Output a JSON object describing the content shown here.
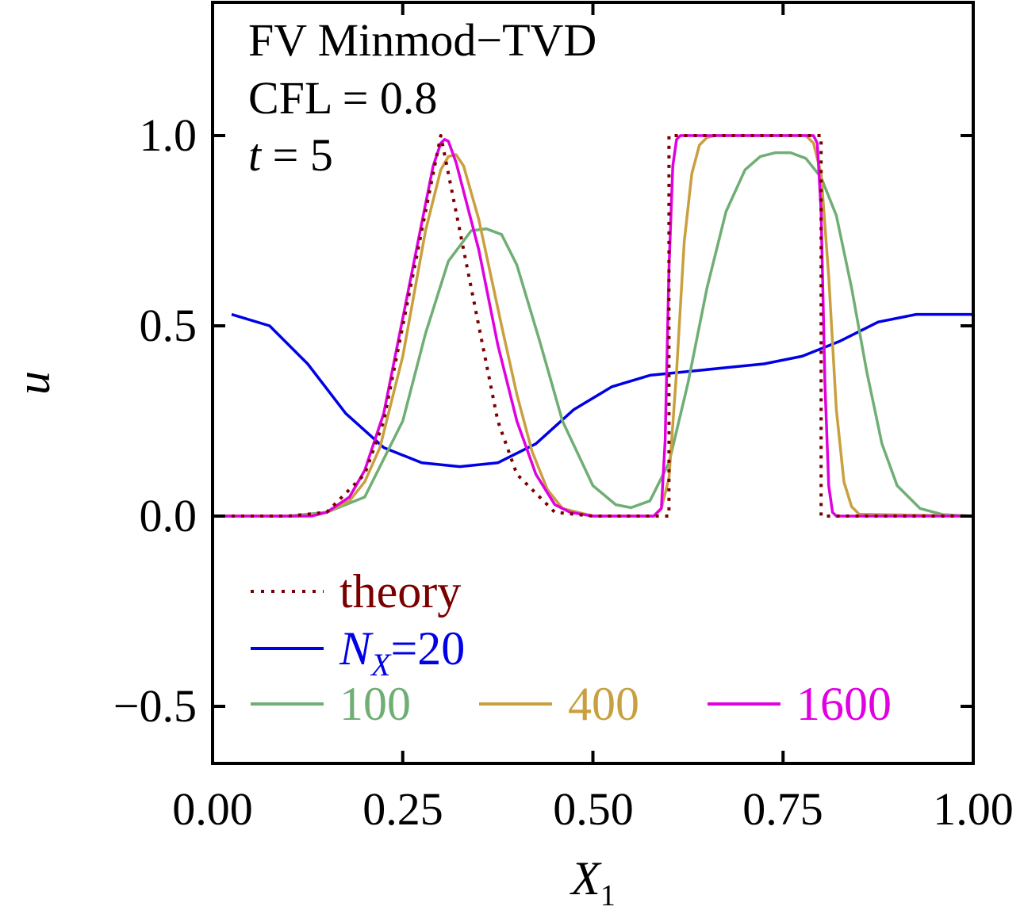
{
  "chart_data": {
    "type": "line",
    "annotations": {
      "line1": "FV Minmod−TVD",
      "line2": "CFL = 0.8",
      "line3_var": "t",
      "line3_rest": " = 5"
    },
    "xlabel": {
      "main": "X",
      "sub": "1"
    },
    "ylabel": "u",
    "xlim": [
      0,
      1
    ],
    "ylim": [
      -0.65,
      1.35
    ],
    "xticks": [
      0,
      0.25,
      0.5,
      0.75,
      1.0
    ],
    "xtick_labels": [
      "0.00",
      "0.25",
      "0.50",
      "0.75",
      "1.00"
    ],
    "yticks": [
      -0.5,
      0,
      0.5,
      1.0
    ],
    "ytick_labels": [
      "−0.5",
      "0.0",
      "0.5",
      "1.0"
    ],
    "grid": false,
    "legend_position": "lower-left",
    "legend": {
      "theory": "theory",
      "nx_var": "N",
      "nx_sub": "X",
      "nx_eq": "=20",
      "n100": "100",
      "n400": "400",
      "n1600": "1600"
    },
    "series": [
      {
        "key": "theory",
        "color": "#7a0000",
        "dashed": true,
        "x": [
          0.0,
          0.1,
          0.15,
          0.2,
          0.225,
          0.25,
          0.275,
          0.3,
          0.325,
          0.35,
          0.375,
          0.4,
          0.45,
          0.5,
          0.6,
          0.6,
          0.8,
          0.8,
          1.0
        ],
        "y": [
          0.0,
          0.0,
          0.01,
          0.11,
          0.25,
          0.5,
          0.75,
          1.0,
          0.75,
          0.5,
          0.25,
          0.11,
          0.01,
          0.0,
          0.0,
          1.0,
          1.0,
          0.0,
          0.0
        ]
      },
      {
        "key": "nx20",
        "color": "#0000e6",
        "dashed": false,
        "x": [
          0.025,
          0.075,
          0.125,
          0.175,
          0.225,
          0.275,
          0.325,
          0.375,
          0.425,
          0.475,
          0.525,
          0.575,
          0.625,
          0.675,
          0.725,
          0.775,
          0.825,
          0.875,
          0.925,
          0.975,
          1.0
        ],
        "y": [
          0.53,
          0.5,
          0.4,
          0.27,
          0.18,
          0.14,
          0.13,
          0.14,
          0.19,
          0.28,
          0.34,
          0.37,
          0.38,
          0.39,
          0.4,
          0.42,
          0.46,
          0.51,
          0.53,
          0.53,
          0.53
        ]
      },
      {
        "key": "n100",
        "color": "#6fae74",
        "dashed": false,
        "x": [
          0.0,
          0.1,
          0.15,
          0.2,
          0.25,
          0.28,
          0.31,
          0.34,
          0.36,
          0.38,
          0.4,
          0.43,
          0.46,
          0.5,
          0.53,
          0.55,
          0.575,
          0.6,
          0.625,
          0.65,
          0.675,
          0.7,
          0.72,
          0.74,
          0.76,
          0.78,
          0.8,
          0.82,
          0.84,
          0.86,
          0.88,
          0.9,
          0.93,
          0.96,
          1.0
        ],
        "y": [
          0.0,
          0.0,
          0.01,
          0.05,
          0.25,
          0.48,
          0.67,
          0.75,
          0.755,
          0.74,
          0.66,
          0.46,
          0.25,
          0.08,
          0.03,
          0.022,
          0.04,
          0.14,
          0.35,
          0.6,
          0.8,
          0.91,
          0.945,
          0.955,
          0.955,
          0.94,
          0.89,
          0.79,
          0.6,
          0.38,
          0.19,
          0.08,
          0.02,
          0.004,
          0.0
        ]
      },
      {
        "key": "n400",
        "color": "#c9a040",
        "dashed": false,
        "x": [
          0.0,
          0.12,
          0.15,
          0.18,
          0.2,
          0.22,
          0.25,
          0.28,
          0.3,
          0.31,
          0.32,
          0.33,
          0.35,
          0.38,
          0.4,
          0.42,
          0.44,
          0.46,
          0.5,
          0.58,
          0.59,
          0.6,
          0.61,
          0.62,
          0.63,
          0.64,
          0.65,
          0.66,
          0.7,
          0.78,
          0.79,
          0.8,
          0.81,
          0.82,
          0.83,
          0.84,
          0.85,
          1.0
        ],
        "y": [
          0.0,
          0.0,
          0.01,
          0.04,
          0.09,
          0.18,
          0.42,
          0.75,
          0.91,
          0.945,
          0.95,
          0.92,
          0.78,
          0.5,
          0.32,
          0.17,
          0.07,
          0.02,
          0.0,
          0.0,
          0.02,
          0.1,
          0.38,
          0.72,
          0.9,
          0.975,
          0.995,
          1.0,
          1.0,
          1.0,
          0.98,
          0.9,
          0.63,
          0.28,
          0.09,
          0.025,
          0.005,
          0.0
        ]
      },
      {
        "key": "n1600",
        "color": "#e000e0",
        "dashed": false,
        "x": [
          0.0,
          0.13,
          0.15,
          0.18,
          0.2,
          0.225,
          0.25,
          0.275,
          0.29,
          0.3,
          0.305,
          0.31,
          0.32,
          0.35,
          0.375,
          0.4,
          0.425,
          0.45,
          0.47,
          0.5,
          0.58,
          0.59,
          0.595,
          0.6,
          0.605,
          0.61,
          0.615,
          0.62,
          0.7,
          0.79,
          0.795,
          0.8,
          0.805,
          0.81,
          0.815,
          0.82,
          1.0
        ],
        "y": [
          0.0,
          0.0,
          0.01,
          0.05,
          0.12,
          0.27,
          0.52,
          0.77,
          0.92,
          0.98,
          0.99,
          0.985,
          0.93,
          0.7,
          0.45,
          0.25,
          0.11,
          0.03,
          0.01,
          0.0,
          0.0,
          0.02,
          0.2,
          0.65,
          0.92,
          0.99,
          1.0,
          1.0,
          1.0,
          1.0,
          0.98,
          0.8,
          0.35,
          0.08,
          0.01,
          0.0,
          0.0
        ]
      }
    ]
  }
}
